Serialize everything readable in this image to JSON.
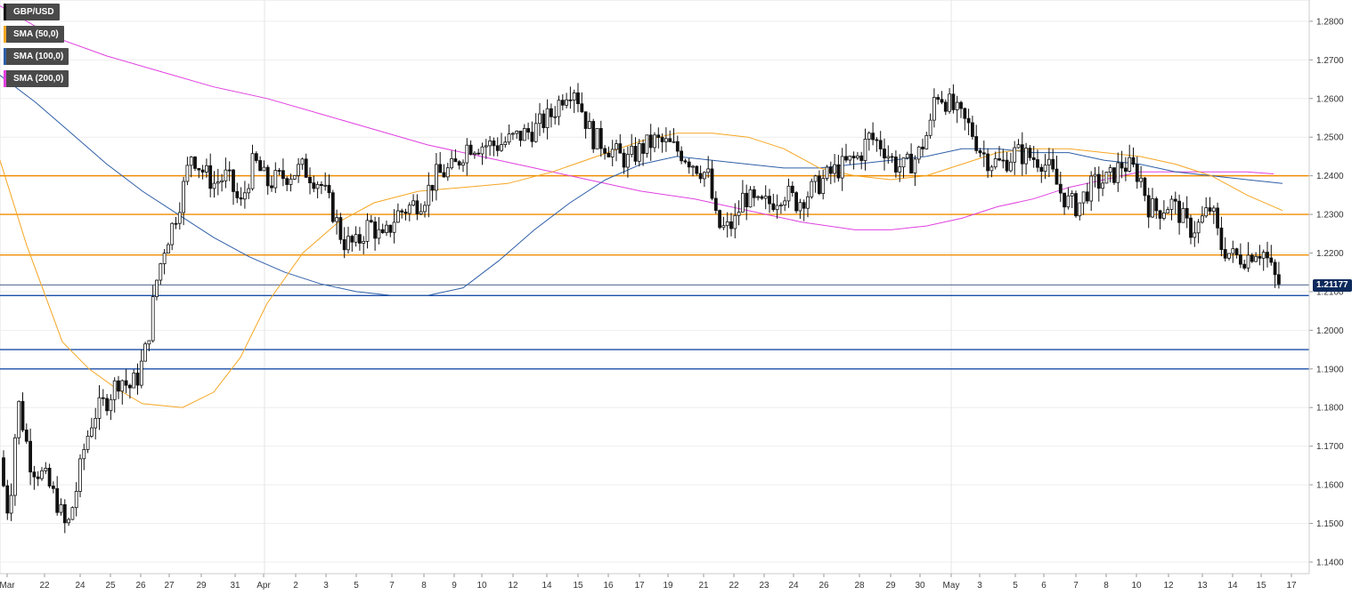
{
  "chart_data": {
    "type": "candlestick",
    "symbol": "GBP/USD",
    "legend": [
      {
        "label": "GBP/USD",
        "color": "#111111"
      },
      {
        "label": "SMA (50,0)",
        "color": "#f5a623"
      },
      {
        "label": "SMA (100,0)",
        "color": "#2f5fa8"
      },
      {
        "label": "SMA (200,0)",
        "color": "#e040e0"
      }
    ],
    "last_price": "1.21177",
    "ylim": [
      1.137,
      1.2855
    ],
    "y_ticks": [
      "1.2800",
      "1.2700",
      "1.2600",
      "1.2500",
      "1.2400",
      "1.2300",
      "1.2200",
      "1.2100",
      "1.2000",
      "1.1900",
      "1.1800",
      "1.1700",
      "1.1600",
      "1.1500",
      "1.1400"
    ],
    "x_ticks": [
      "Mar",
      "22",
      "24",
      "25",
      "26",
      "27",
      "29",
      "31",
      "Apr",
      "2",
      "3",
      "5",
      "7",
      "8",
      "9",
      "10",
      "12",
      "14",
      "15",
      "16",
      "17",
      "19",
      "21",
      "22",
      "23",
      "24",
      "26",
      "28",
      "29",
      "30",
      "May",
      "3",
      "5",
      "6",
      "7",
      "8",
      "10",
      "12",
      "13",
      "14",
      "15",
      "17"
    ],
    "horizontal_lines": [
      {
        "value": 1.24,
        "color": "#f08c00"
      },
      {
        "value": 1.23,
        "color": "#f08c00"
      },
      {
        "value": 1.2195,
        "color": "#f08c00"
      },
      {
        "value": 1.209,
        "color": "#1a4ea8"
      },
      {
        "value": 1.195,
        "color": "#1a4ea8"
      },
      {
        "value": 1.19,
        "color": "#1a4ea8"
      }
    ],
    "close_anchors": [
      [
        0,
        1.165
      ],
      [
        10,
        1.152
      ],
      [
        20,
        1.182
      ],
      [
        35,
        1.165
      ],
      [
        50,
        1.162
      ],
      [
        65,
        1.155
      ],
      [
        75,
        1.148
      ],
      [
        85,
        1.158
      ],
      [
        95,
        1.17
      ],
      [
        105,
        1.178
      ],
      [
        120,
        1.182
      ],
      [
        135,
        1.188
      ],
      [
        145,
        1.185
      ],
      [
        155,
        1.188
      ],
      [
        165,
        1.196
      ],
      [
        175,
        1.212
      ],
      [
        185,
        1.222
      ],
      [
        195,
        1.228
      ],
      [
        205,
        1.236
      ],
      [
        215,
        1.246
      ],
      [
        225,
        1.242
      ],
      [
        240,
        1.238
      ],
      [
        255,
        1.24
      ],
      [
        270,
        1.232
      ],
      [
        285,
        1.244
      ],
      [
        300,
        1.238
      ],
      [
        320,
        1.24
      ],
      [
        340,
        1.242
      ],
      [
        360,
        1.238
      ],
      [
        375,
        1.23
      ],
      [
        385,
        1.223
      ],
      [
        400,
        1.222
      ],
      [
        415,
        1.228
      ],
      [
        430,
        1.223
      ],
      [
        445,
        1.23
      ],
      [
        460,
        1.232
      ],
      [
        475,
        1.234
      ],
      [
        490,
        1.24
      ],
      [
        510,
        1.242
      ],
      [
        525,
        1.248
      ],
      [
        540,
        1.248
      ],
      [
        560,
        1.248
      ],
      [
        580,
        1.25
      ],
      [
        600,
        1.252
      ],
      [
        620,
        1.256
      ],
      [
        635,
        1.262
      ],
      [
        645,
        1.263
      ],
      [
        655,
        1.256
      ],
      [
        665,
        1.25
      ],
      [
        680,
        1.248
      ],
      [
        695,
        1.245
      ],
      [
        705,
        1.244
      ],
      [
        720,
        1.247
      ],
      [
        735,
        1.249
      ],
      [
        750,
        1.248
      ],
      [
        765,
        1.246
      ],
      [
        780,
        1.243
      ],
      [
        795,
        1.24
      ],
      [
        805,
        1.227
      ],
      [
        815,
        1.226
      ],
      [
        825,
        1.228
      ],
      [
        835,
        1.235
      ],
      [
        850,
        1.232
      ],
      [
        865,
        1.233
      ],
      [
        880,
        1.236
      ],
      [
        895,
        1.233
      ],
      [
        905,
        1.235
      ],
      [
        920,
        1.238
      ],
      [
        935,
        1.241
      ],
      [
        950,
        1.243
      ],
      [
        965,
        1.245
      ],
      [
        975,
        1.25
      ],
      [
        990,
        1.248
      ],
      [
        1005,
        1.243
      ],
      [
        1015,
        1.242
      ],
      [
        1030,
        1.245
      ],
      [
        1045,
        1.253
      ],
      [
        1050,
        1.262
      ],
      [
        1060,
        1.26
      ],
      [
        1075,
        1.256
      ],
      [
        1090,
        1.252
      ],
      [
        1100,
        1.247
      ],
      [
        1110,
        1.244
      ],
      [
        1125,
        1.243
      ],
      [
        1140,
        1.246
      ],
      [
        1155,
        1.245
      ],
      [
        1170,
        1.244
      ],
      [
        1180,
        1.241
      ],
      [
        1190,
        1.236
      ],
      [
        1200,
        1.233
      ],
      [
        1210,
        1.232
      ],
      [
        1220,
        1.236
      ],
      [
        1230,
        1.238
      ],
      [
        1245,
        1.239
      ],
      [
        1260,
        1.243
      ],
      [
        1270,
        1.242
      ],
      [
        1280,
        1.24
      ],
      [
        1290,
        1.232
      ],
      [
        1300,
        1.231
      ],
      [
        1315,
        1.233
      ],
      [
        1325,
        1.23
      ],
      [
        1335,
        1.226
      ],
      [
        1345,
        1.227
      ],
      [
        1360,
        1.232
      ],
      [
        1370,
        1.222
      ],
      [
        1385,
        1.219
      ],
      [
        1400,
        1.219
      ],
      [
        1410,
        1.221
      ],
      [
        1420,
        1.22
      ],
      [
        1430,
        1.214
      ],
      [
        1437,
        1.2118
      ]
    ],
    "sma50": [
      [
        0,
        1.244
      ],
      [
        30,
        1.222
      ],
      [
        70,
        1.197
      ],
      [
        100,
        1.19
      ],
      [
        130,
        1.185
      ],
      [
        160,
        1.181
      ],
      [
        205,
        1.18
      ],
      [
        240,
        1.184
      ],
      [
        270,
        1.193
      ],
      [
        300,
        1.207
      ],
      [
        340,
        1.22
      ],
      [
        380,
        1.228
      ],
      [
        420,
        1.233
      ],
      [
        470,
        1.236
      ],
      [
        520,
        1.237
      ],
      [
        570,
        1.238
      ],
      [
        620,
        1.241
      ],
      [
        670,
        1.245
      ],
      [
        720,
        1.249
      ],
      [
        760,
        1.251
      ],
      [
        800,
        1.251
      ],
      [
        840,
        1.25
      ],
      [
        880,
        1.247
      ],
      [
        920,
        1.242
      ],
      [
        960,
        1.24
      ],
      [
        1000,
        1.239
      ],
      [
        1040,
        1.24
      ],
      [
        1080,
        1.243
      ],
      [
        1120,
        1.246
      ],
      [
        1160,
        1.247
      ],
      [
        1200,
        1.247
      ],
      [
        1240,
        1.246
      ],
      [
        1280,
        1.245
      ],
      [
        1320,
        1.243
      ],
      [
        1360,
        1.24
      ],
      [
        1400,
        1.235
      ],
      [
        1440,
        1.231
      ]
    ],
    "sma100": [
      [
        0,
        1.266
      ],
      [
        40,
        1.259
      ],
      [
        80,
        1.251
      ],
      [
        120,
        1.243
      ],
      [
        160,
        1.236
      ],
      [
        200,
        1.23
      ],
      [
        240,
        1.224
      ],
      [
        280,
        1.219
      ],
      [
        320,
        1.215
      ],
      [
        360,
        1.212
      ],
      [
        400,
        1.21
      ],
      [
        440,
        1.209
      ],
      [
        480,
        1.209
      ],
      [
        520,
        1.211
      ],
      [
        560,
        1.218
      ],
      [
        600,
        1.226
      ],
      [
        640,
        1.233
      ],
      [
        680,
        1.239
      ],
      [
        720,
        1.243
      ],
      [
        760,
        1.245
      ],
      [
        800,
        1.244
      ],
      [
        840,
        1.243
      ],
      [
        880,
        1.242
      ],
      [
        920,
        1.242
      ],
      [
        960,
        1.243
      ],
      [
        1000,
        1.244
      ],
      [
        1040,
        1.245
      ],
      [
        1080,
        1.247
      ],
      [
        1120,
        1.247
      ],
      [
        1160,
        1.246
      ],
      [
        1200,
        1.246
      ],
      [
        1240,
        1.244
      ],
      [
        1280,
        1.243
      ],
      [
        1320,
        1.241
      ],
      [
        1360,
        1.24
      ],
      [
        1400,
        1.239
      ],
      [
        1440,
        1.238
      ]
    ],
    "sma200": [
      [
        0,
        1.284
      ],
      [
        60,
        1.276
      ],
      [
        120,
        1.271
      ],
      [
        180,
        1.267
      ],
      [
        240,
        1.263
      ],
      [
        300,
        1.26
      ],
      [
        360,
        1.256
      ],
      [
        420,
        1.252
      ],
      [
        480,
        1.248
      ],
      [
        540,
        1.245
      ],
      [
        600,
        1.242
      ],
      [
        660,
        1.239
      ],
      [
        720,
        1.236
      ],
      [
        780,
        1.234
      ],
      [
        840,
        1.231
      ],
      [
        900,
        1.228
      ],
      [
        960,
        1.226
      ],
      [
        1000,
        1.226
      ],
      [
        1040,
        1.227
      ],
      [
        1080,
        1.229
      ],
      [
        1120,
        1.232
      ],
      [
        1160,
        1.234
      ],
      [
        1200,
        1.237
      ],
      [
        1240,
        1.239
      ],
      [
        1280,
        1.241
      ],
      [
        1320,
        1.241
      ],
      [
        1360,
        1.241
      ],
      [
        1400,
        1.241
      ],
      [
        1430,
        1.2405
      ]
    ],
    "grid": true
  }
}
